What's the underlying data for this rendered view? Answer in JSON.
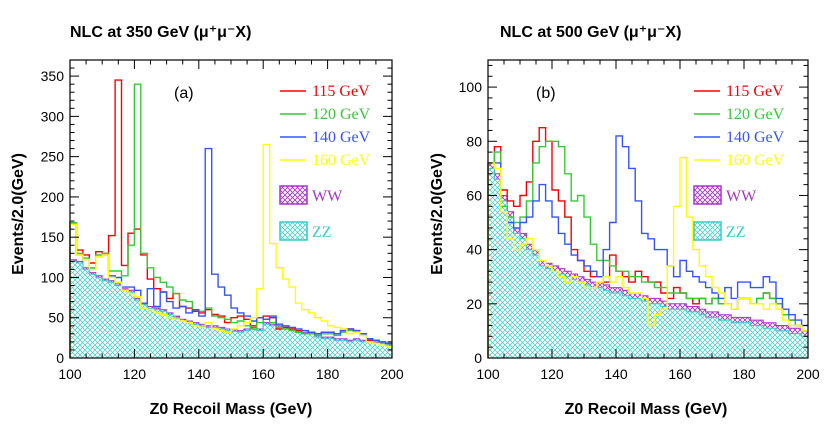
{
  "chart_data": [
    {
      "type": "histogram",
      "id": "a",
      "title": "NLC at 350 GeV (μ⁺μ⁻X)",
      "panel_tag": "(a)",
      "xlabel": "Z0 Recoil Mass (GeV)",
      "ylabel": "Events/2.0(GeV)",
      "xlim": [
        100,
        200
      ],
      "ylim": [
        0,
        370
      ],
      "bin_width": 2,
      "bin_start": 100,
      "xticks": [
        100,
        120,
        140,
        160,
        180,
        200
      ],
      "yticks": [
        0,
        50,
        100,
        150,
        200,
        250,
        300,
        350
      ],
      "legend_position": "top-right",
      "series": [
        {
          "name": "ZZ",
          "style": "fill",
          "color": "#33cccc",
          "values": [
            120,
            118,
            110,
            104,
            100,
            96,
            94,
            90,
            84,
            82,
            72,
            66,
            62,
            60,
            58,
            54,
            50,
            46,
            44,
            42,
            40,
            38,
            38,
            36,
            34,
            33,
            32,
            34,
            36,
            34,
            42,
            40,
            38,
            36,
            34,
            32,
            30,
            30,
            26,
            24,
            24,
            22,
            22,
            20,
            22,
            20,
            20,
            18,
            18,
            16
          ]
        },
        {
          "name": "WW",
          "style": "fill",
          "color": "#aa33cc",
          "values": [
            122,
            120,
            112,
            106,
            102,
            98,
            96,
            92,
            86,
            84,
            74,
            68,
            64,
            62,
            60,
            56,
            52,
            48,
            46,
            44,
            42,
            40,
            40,
            38,
            36,
            35,
            34,
            36,
            38,
            36,
            44,
            42,
            40,
            38,
            36,
            34,
            32,
            32,
            28,
            26,
            26,
            24,
            24,
            22,
            24,
            22,
            22,
            20,
            20,
            18
          ]
        },
        {
          "name": "115 GeV",
          "style": "line",
          "color": "#ff0000",
          "values": [
            168,
            134,
            128,
            118,
            132,
            130,
            152,
            345,
            115,
            155,
            160,
            128,
            98,
            86,
            82,
            74,
            80,
            64,
            62,
            58,
            56,
            60,
            54,
            52,
            44,
            50,
            52,
            48,
            40,
            50,
            52,
            50,
            36,
            38,
            36,
            34,
            30,
            32,
            30,
            32,
            32,
            30,
            34,
            36,
            34,
            30,
            22,
            22,
            20,
            18
          ]
        },
        {
          "name": "120 GeV",
          "style": "line",
          "color": "#33cc33",
          "values": [
            168,
            130,
            124,
            112,
            128,
            130,
            108,
            108,
            102,
            140,
            340,
            130,
            112,
            100,
            94,
            88,
            80,
            72,
            70,
            60,
            58,
            62,
            52,
            50,
            48,
            44,
            46,
            40,
            36,
            44,
            48,
            44,
            38,
            36,
            34,
            32,
            30,
            30,
            28,
            30,
            30,
            28,
            32,
            34,
            32,
            28,
            24,
            22,
            20,
            18
          ]
        },
        {
          "name": "140 GeV",
          "style": "line",
          "color": "#3355ff",
          "values": [
            166,
            128,
            122,
            110,
            126,
            128,
            102,
            100,
            88,
            88,
            84,
            68,
            86,
            64,
            82,
            70,
            62,
            64,
            56,
            60,
            52,
            260,
            104,
            88,
            78,
            62,
            56,
            52,
            46,
            50,
            48,
            52,
            42,
            40,
            38,
            36,
            34,
            32,
            30,
            32,
            32,
            30,
            34,
            36,
            34,
            30,
            24,
            22,
            20,
            18
          ]
        },
        {
          "name": "160 GeV",
          "style": "line",
          "color": "#ffff00",
          "values": [
            166,
            128,
            122,
            110,
            126,
            128,
            100,
            94,
            84,
            80,
            76,
            62,
            60,
            56,
            54,
            50,
            48,
            46,
            44,
            40,
            38,
            44,
            36,
            34,
            32,
            36,
            40,
            44,
            50,
            86,
            265,
            142,
            112,
            98,
            88,
            68,
            60,
            56,
            50,
            46,
            40,
            38,
            36,
            30,
            32,
            28,
            20,
            18,
            16,
            14
          ]
        }
      ]
    },
    {
      "type": "histogram",
      "id": "b",
      "title": "NLC at 500 GeV (μ⁺μ⁻X)",
      "panel_tag": "(b)",
      "xlabel": "Z0 Recoil Mass (GeV)",
      "ylabel": "Events/2.0(GeV)",
      "xlim": [
        100,
        200
      ],
      "ylim": [
        0,
        110
      ],
      "bin_width": 2,
      "bin_start": 100,
      "xticks": [
        100,
        120,
        140,
        160,
        180,
        200
      ],
      "yticks": [
        0,
        20,
        40,
        60,
        80,
        100
      ],
      "legend_position": "top-right",
      "series": [
        {
          "name": "ZZ",
          "style": "fill",
          "color": "#33cccc",
          "values": [
            70,
            66,
            58,
            52,
            46,
            44,
            40,
            38,
            34,
            33,
            32,
            31,
            30,
            29,
            28,
            27,
            26,
            26,
            25,
            24,
            24,
            23,
            22,
            22,
            21,
            20,
            20,
            19,
            18,
            18,
            18,
            17,
            17,
            16,
            15,
            15,
            14,
            14,
            13,
            13,
            13,
            12,
            12,
            11,
            11,
            10,
            10,
            9,
            9,
            8
          ]
        },
        {
          "name": "WW",
          "style": "fill",
          "color": "#aa33cc",
          "values": [
            72,
            68,
            60,
            54,
            48,
            46,
            42,
            40,
            36,
            35,
            34,
            33,
            32,
            31,
            30,
            29,
            28,
            28,
            27,
            26,
            26,
            25,
            24,
            24,
            23,
            22,
            22,
            21,
            20,
            20,
            20,
            19,
            19,
            18,
            17,
            17,
            16,
            16,
            15,
            15,
            15,
            14,
            14,
            13,
            13,
            12,
            12,
            11,
            11,
            10
          ]
        },
        {
          "name": "115 GeV",
          "style": "line",
          "color": "#ff0000",
          "values": [
            72,
            78,
            62,
            58,
            56,
            60,
            65,
            80,
            85,
            80,
            62,
            58,
            52,
            40,
            36,
            32,
            30,
            30,
            28,
            38,
            32,
            30,
            28,
            32,
            30,
            28,
            28,
            24,
            22,
            26,
            24,
            22,
            20,
            22,
            20,
            22,
            20,
            20,
            18,
            22,
            22,
            20,
            22,
            24,
            22,
            20,
            16,
            14,
            12,
            10
          ]
        },
        {
          "name": "120 GeV",
          "style": "line",
          "color": "#33cc33",
          "values": [
            72,
            76,
            56,
            52,
            50,
            52,
            58,
            72,
            78,
            80,
            80,
            78,
            68,
            58,
            60,
            52,
            42,
            36,
            36,
            34,
            32,
            32,
            30,
            30,
            28,
            28,
            26,
            26,
            24,
            24,
            24,
            22,
            22,
            22,
            20,
            22,
            20,
            20,
            18,
            22,
            22,
            20,
            22,
            24,
            22,
            20,
            16,
            14,
            12,
            10
          ]
        },
        {
          "name": "140 GeV",
          "style": "line",
          "color": "#3355ff",
          "values": [
            72,
            72,
            54,
            50,
            48,
            50,
            52,
            58,
            64,
            58,
            52,
            46,
            42,
            38,
            36,
            34,
            32,
            30,
            40,
            50,
            82,
            78,
            70,
            58,
            46,
            44,
            40,
            40,
            34,
            30,
            36,
            32,
            30,
            28,
            26,
            24,
            22,
            26,
            22,
            28,
            28,
            26,
            26,
            30,
            28,
            22,
            18,
            16,
            14,
            12
          ]
        },
        {
          "name": "160 GeV",
          "style": "line",
          "color": "#ffff00",
          "values": [
            72,
            70,
            54,
            44,
            40,
            42,
            44,
            40,
            36,
            34,
            32,
            30,
            28,
            30,
            28,
            26,
            26,
            28,
            30,
            28,
            30,
            26,
            24,
            24,
            22,
            12,
            16,
            18,
            34,
            56,
            74,
            52,
            40,
            34,
            30,
            26,
            24,
            20,
            18,
            22,
            22,
            20,
            20,
            18,
            20,
            18,
            14,
            12,
            12,
            10
          ]
        }
      ]
    }
  ]
}
